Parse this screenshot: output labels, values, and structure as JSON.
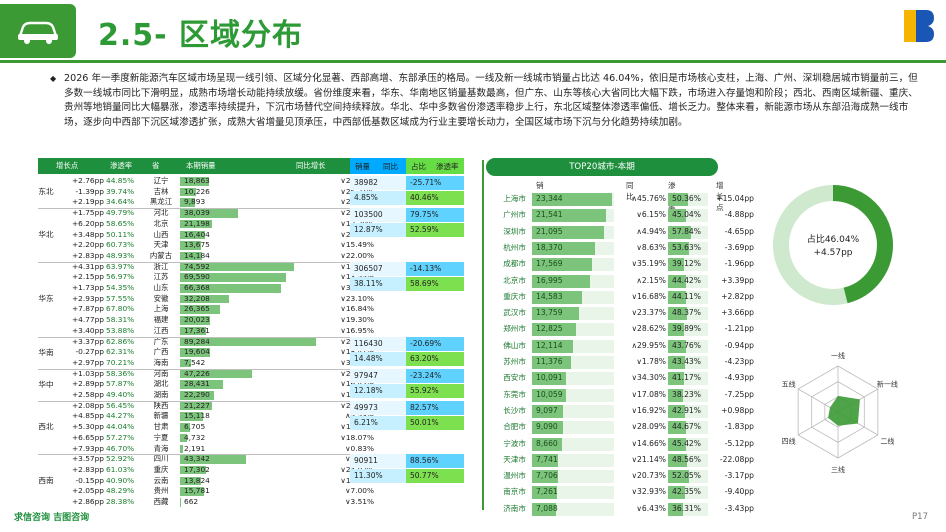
{
  "header": {
    "title": "2.5- 区域分布"
  },
  "paragraph": "2026 年一季度新能源汽车区域市场呈现一线引领、区域分化显著、西部高增、东部承压的格局。一线及新一线城市销量占比达 46.04%，依旧是市场核心支柱，上海、广州、深圳稳居城市销量前三，但多数一线城市同比下滑明显，成熟市场增长动能持续放缓。省份维度来看，华东、华南地区销量基数最高，但广东、山东等核心大省同比大幅下跌，市场进入存量饱和阶段；西北、西南区域新疆、重庆、贵州等地销量同比大幅暴涨，渗透率持续提升，下沉市场替代空间持续释放。华北、华中多数省份渗透率稳步上行，东北区域整体渗透率偏低、增长乏力。整体来看，新能源市场从东部沿海成熟一线市场，逐步向中西部下沉区域渗透扩张，成熟大省增量见顶承压，中西部低基数区域成为行业主要增长动力，全国区域市场下沉与分化趋势持续加剧。",
  "left_table": {
    "headers": {
      "inc": "增长点",
      "pen": "渗透率",
      "prov": "省",
      "sales": "本期销量",
      "yoy": "同比增长"
    },
    "max_sales": 92000,
    "rows": [
      {
        "inc": "+2.76pp",
        "pen": "44.85%",
        "prov": "辽宁",
        "sales": "18,863",
        "s": 18863,
        "yoy": "∨27.81%"
      },
      {
        "inc": "-1.39pp",
        "pen": "39.74%",
        "prov": "吉林",
        "sales": "10,226",
        "s": 10226,
        "yoy": "∨25.31%"
      },
      {
        "inc": "+2.19pp",
        "pen": "34.64%",
        "prov": "黑龙江",
        "sales": "9,893",
        "s": 9893,
        "yoy": "∨21.81%"
      },
      {
        "inc": "+1.75pp",
        "pen": "49.79%",
        "prov": "河北",
        "sales": "38,039",
        "s": 38039,
        "yoy": "∨20.07%"
      },
      {
        "inc": "+6.20pp",
        "pen": "58.65%",
        "prov": "北京",
        "sales": "21,198",
        "s": 21198,
        "yoy": "∨13.20%"
      },
      {
        "inc": "+3.48pp",
        "pen": "50.11%",
        "prov": "山西",
        "sales": "16,404",
        "s": 16404,
        "yoy": "∨29.89%"
      },
      {
        "inc": "+2.20pp",
        "pen": "60.73%",
        "prov": "天津",
        "sales": "13,675",
        "s": 13675,
        "yoy": "∨15.49%"
      },
      {
        "inc": "+2.83pp",
        "pen": "48.93%",
        "prov": "内蒙古",
        "sales": "14,184",
        "s": 14184,
        "yoy": "∨22.00%"
      },
      {
        "inc": "+4.31pp",
        "pen": "63.97%",
        "prov": "浙江",
        "sales": "74,592",
        "s": 74592,
        "yoy": "∨13.35%"
      },
      {
        "inc": "+2.15pp",
        "pen": "56.97%",
        "prov": "江苏",
        "sales": "69,590",
        "s": 69590,
        "yoy": "∨13.55%"
      },
      {
        "inc": "+1.73pp",
        "pen": "54.35%",
        "prov": "山东",
        "sales": "66,368",
        "s": 66368,
        "yoy": "∨35.69%"
      },
      {
        "inc": "+2.93pp",
        "pen": "57.55%",
        "prov": "安徽",
        "sales": "32,208",
        "s": 32208,
        "yoy": "∨23.10%"
      },
      {
        "inc": "+7.87pp",
        "pen": "67.80%",
        "prov": "上海",
        "sales": "26,365",
        "s": 26365,
        "yoy": "∨16.84%"
      },
      {
        "inc": "+4.77pp",
        "pen": "58.31%",
        "prov": "福建",
        "sales": "20,023",
        "s": 20023,
        "yoy": "∨19.30%"
      },
      {
        "inc": "+3.40pp",
        "pen": "53.88%",
        "prov": "江西",
        "sales": "17,361",
        "s": 17361,
        "yoy": "∨16.95%"
      },
      {
        "inc": "+3.37pp",
        "pen": "62.86%",
        "prov": "广东",
        "sales": "89,284",
        "s": 89284,
        "yoy": "∨20.27%"
      },
      {
        "inc": "-0.27pp",
        "pen": "62.31%",
        "prov": "广西",
        "sales": "19,604",
        "s": 19604,
        "yoy": "∨18.41%"
      },
      {
        "inc": "+2.97pp",
        "pen": "70.21%",
        "prov": "海南",
        "sales": "7,542",
        "s": 7542,
        "yoy": "∨30.06%"
      },
      {
        "inc": "+1.03pp",
        "pen": "58.36%",
        "prov": "河南",
        "sales": "47,226",
        "s": 47226,
        "yoy": "∨29.29%"
      },
      {
        "inc": "+2.89pp",
        "pen": "57.87%",
        "prov": "湖北",
        "sales": "28,431",
        "s": 28431,
        "yoy": "∨16.42%"
      },
      {
        "inc": "+2.58pp",
        "pen": "49.40%",
        "prov": "湖南",
        "sales": "22,290",
        "s": 22290,
        "yoy": "∨16.22%"
      },
      {
        "inc": "+2.08pp",
        "pen": "56.45%",
        "prov": "陕西",
        "sales": "21,227",
        "s": 21227,
        "yoy": "∨25.99%"
      },
      {
        "inc": "+4.85pp",
        "pen": "44.27%",
        "prov": "新疆",
        "sales": "15,118",
        "s": 15118,
        "yoy": "∧5.53%"
      },
      {
        "inc": "+5.30pp",
        "pen": "44.04%",
        "prov": "甘肃",
        "sales": "6,705",
        "s": 6705,
        "yoy": "∨15.02%"
      },
      {
        "inc": "+6.65pp",
        "pen": "57.27%",
        "prov": "宁夏",
        "sales": "4,732",
        "s": 4732,
        "yoy": "∨18.07%"
      },
      {
        "inc": "+7.93pp",
        "pen": "46.70%",
        "prov": "青海",
        "sales": "2,191",
        "s": 2191,
        "yoy": "∨0.83%"
      },
      {
        "inc": "+3.57pp",
        "pen": "52.92%",
        "prov": "四川",
        "sales": "43,342",
        "s": 43342,
        "yoy": "∨4.04%"
      },
      {
        "inc": "+2.83pp",
        "pen": "61.03%",
        "prov": "重庆",
        "sales": "17,302",
        "s": 17302,
        "yoy": "∨24.82%"
      },
      {
        "inc": "-0.15pp",
        "pen": "40.90%",
        "prov": "云南",
        "sales": "13,824",
        "s": 13824,
        "yoy": "∨18.70%"
      },
      {
        "inc": "+2.05pp",
        "pen": "48.29%",
        "prov": "贵州",
        "sales": "15,781",
        "s": 15781,
        "yoy": "∨7.00%"
      },
      {
        "inc": "+2.86pp",
        "pen": "28.38%",
        "prov": "西藏",
        "sales": "662",
        "s": 662,
        "yoy": "∨3.51%"
      }
    ],
    "regions": [
      {
        "name": "东北",
        "start": 0,
        "count": 3
      },
      {
        "name": "华北",
        "start": 3,
        "count": 5
      },
      {
        "name": "华东",
        "start": 8,
        "count": 7
      },
      {
        "name": "华南",
        "start": 15,
        "count": 3
      },
      {
        "name": "华中",
        "start": 18,
        "count": 3
      },
      {
        "name": "西北",
        "start": 21,
        "count": 5
      },
      {
        "name": "西南",
        "start": 26,
        "count": 5
      }
    ]
  },
  "summary": {
    "headers": {
      "sales": "销量",
      "yoy": "同比",
      "share": "占比",
      "pen": "渗透率"
    },
    "blocks": [
      {
        "sales": "38982",
        "yoy": "-25.71%",
        "pen": "4.85%",
        "share": "40.46%"
      },
      {
        "sales": "103500",
        "yoy": "79.75%",
        "pen": "12.87%",
        "share": "52.59%"
      },
      {
        "sales": "306507",
        "yoy": "-14.13%",
        "pen": "38.11%",
        "share": "58.69%"
      },
      {
        "sales": "116430",
        "yoy": "-20.69%",
        "pen": "14.48%",
        "share": "63.20%"
      },
      {
        "sales": "97947",
        "yoy": "-23.24%",
        "pen": "12.18%",
        "share": "55.92%"
      },
      {
        "sales": "49973",
        "yoy": "82.57%",
        "pen": "6.21%",
        "share": "50.01%"
      },
      {
        "sales": "90911",
        "yoy": "88.56%",
        "pen": "11.30%",
        "share": "50.77%"
      }
    ]
  },
  "top20": {
    "title": "TOP20城市-本期",
    "headers": {
      "sales": "销量",
      "yoy": "同比",
      "pen": "渗透率",
      "inc": "增长点"
    },
    "max_sales": 24000,
    "rows": [
      {
        "city": "上海市",
        "sales": "23,344",
        "s": 23344,
        "yoy": "∧45.76%",
        "pen": "50.36%",
        "p": 50.36,
        "inc": "+15.04pp"
      },
      {
        "city": "广州市",
        "sales": "21,541",
        "s": 21541,
        "yoy": "∨6.15%",
        "pen": "45.04%",
        "p": 45.04,
        "inc": "-4.88pp"
      },
      {
        "city": "深圳市",
        "sales": "21,095",
        "s": 21095,
        "yoy": "∧4.94%",
        "pen": "57.84%",
        "p": 57.84,
        "inc": "-4.65pp"
      },
      {
        "city": "杭州市",
        "sales": "18,370",
        "s": 18370,
        "yoy": "∨8.63%",
        "pen": "53.63%",
        "p": 53.63,
        "inc": "-3.69pp"
      },
      {
        "city": "成都市",
        "sales": "17,569",
        "s": 17569,
        "yoy": "∨35.19%",
        "pen": "39.12%",
        "p": 39.12,
        "inc": "-1.96pp"
      },
      {
        "city": "北京市",
        "sales": "16,995",
        "s": 16995,
        "yoy": "∧2.15%",
        "pen": "44.42%",
        "p": 44.42,
        "inc": "+3.39pp"
      },
      {
        "city": "重庆市",
        "sales": "14,583",
        "s": 14583,
        "yoy": "∨16.68%",
        "pen": "44.11%",
        "p": 44.11,
        "inc": "+2.82pp"
      },
      {
        "city": "武汉市",
        "sales": "13,759",
        "s": 13759,
        "yoy": "∨23.37%",
        "pen": "48.37%",
        "p": 48.37,
        "inc": "+3.66pp"
      },
      {
        "city": "郑州市",
        "sales": "12,825",
        "s": 12825,
        "yoy": "∨28.62%",
        "pen": "39.89%",
        "p": 39.89,
        "inc": "-1.21pp"
      },
      {
        "city": "佛山市",
        "sales": "12,114",
        "s": 12114,
        "yoy": "∧29.95%",
        "pen": "43.76%",
        "p": 43.76,
        "inc": "-0.94pp"
      },
      {
        "city": "苏州市",
        "sales": "11,376",
        "s": 11376,
        "yoy": "∨1.78%",
        "pen": "43.43%",
        "p": 43.43,
        "inc": "-4.23pp"
      },
      {
        "city": "西安市",
        "sales": "10,091",
        "s": 10091,
        "yoy": "∨34.30%",
        "pen": "41.17%",
        "p": 41.17,
        "inc": "-4.93pp"
      },
      {
        "city": "东莞市",
        "sales": "10,059",
        "s": 10059,
        "yoy": "∨17.08%",
        "pen": "38.23%",
        "p": 38.23,
        "inc": "-7.25pp"
      },
      {
        "city": "长沙市",
        "sales": "9,097",
        "s": 9097,
        "yoy": "∨16.92%",
        "pen": "42.91%",
        "p": 42.91,
        "inc": "+0.98pp"
      },
      {
        "city": "合肥市",
        "sales": "9,090",
        "s": 9090,
        "yoy": "∨28.09%",
        "pen": "44.67%",
        "p": 44.67,
        "inc": "-1.83pp"
      },
      {
        "city": "宁波市",
        "sales": "8,660",
        "s": 8660,
        "yoy": "∨14.66%",
        "pen": "45.42%",
        "p": 45.42,
        "inc": "-5.12pp"
      },
      {
        "city": "天津市",
        "sales": "7,741",
        "s": 7741,
        "yoy": "∨21.14%",
        "pen": "48.56%",
        "p": 48.56,
        "inc": "-22.08pp"
      },
      {
        "city": "温州市",
        "sales": "7,706",
        "s": 7706,
        "yoy": "∨20.73%",
        "pen": "52.05%",
        "p": 52.05,
        "inc": "-3.17pp"
      },
      {
        "city": "南京市",
        "sales": "7,261",
        "s": 7261,
        "yoy": "∨32.93%",
        "pen": "42.35%",
        "p": 42.35,
        "inc": "-9.40pp"
      },
      {
        "city": "济南市",
        "sales": "7,088",
        "s": 7088,
        "yoy": "∨6.43%",
        "pen": "36.31%",
        "p": 36.31,
        "inc": "-3.43pp"
      }
    ]
  },
  "donut": {
    "share_label": "占比46.04%",
    "share": 46.04,
    "inc_label": "+4.57pp"
  },
  "radar": {
    "axes": [
      "一线",
      "新一线",
      "二线",
      "三线",
      "四线",
      "五线"
    ],
    "values": [
      0.35,
      0.55,
      0.5,
      0.3,
      0.25,
      0.2
    ]
  },
  "footer": {
    "left": "求信咨询  吉图咨询",
    "page": "P17"
  },
  "colors": {
    "brand": "#3c9a35",
    "dark": "#1e8f3c",
    "bar": "#7cc47c",
    "summary_blue": "#00aaff",
    "summary_green": "#66dd44"
  }
}
